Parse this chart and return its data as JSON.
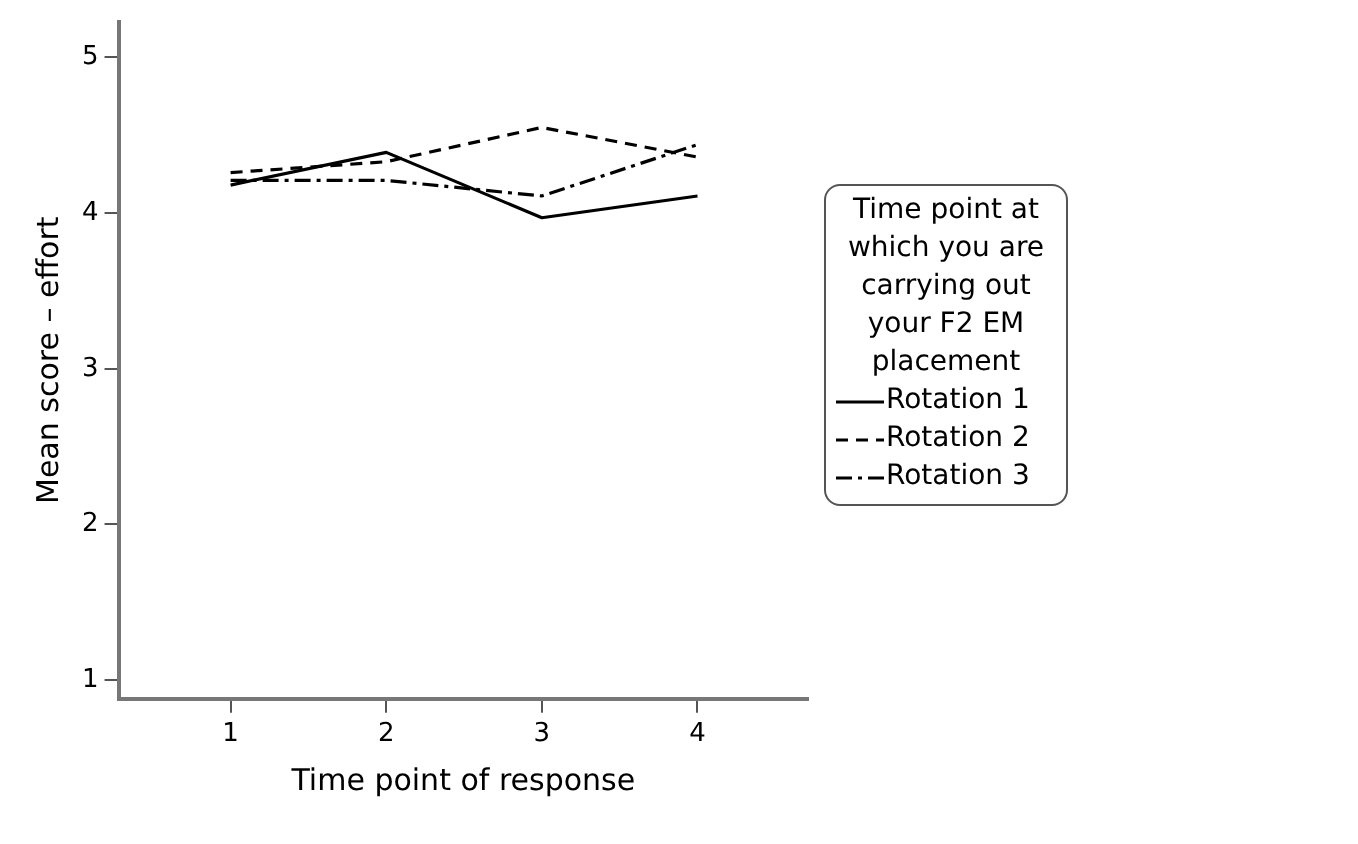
{
  "chart_data": {
    "type": "line",
    "xlabel": "Time point of response",
    "ylabel": "Mean score – effort",
    "legend_title": "Time point at which you are carrying out your F2 EM placement",
    "x": [
      1,
      2,
      3,
      4
    ],
    "xlim": [
      0.28,
      4.71
    ],
    "xticks": [
      1,
      2,
      3,
      4
    ],
    "ylim": [
      0.88,
      5.23
    ],
    "yticks": [
      1,
      2,
      3,
      4,
      5
    ],
    "grid": false,
    "legend": "right",
    "marker": "none",
    "series": [
      {
        "name": "Rotation 1",
        "color": "#000000",
        "line_style": "solid",
        "values": [
          4.18,
          4.39,
          3.97,
          4.11
        ]
      },
      {
        "name": "Rotation 2",
        "color": "#000000",
        "line_style": "dashed",
        "values": [
          4.26,
          4.33,
          4.55,
          4.36
        ]
      },
      {
        "name": "Rotation 3",
        "color": "#000000",
        "line_style": "dashdot",
        "values": [
          4.21,
          4.21,
          4.11,
          4.44
        ]
      }
    ]
  }
}
